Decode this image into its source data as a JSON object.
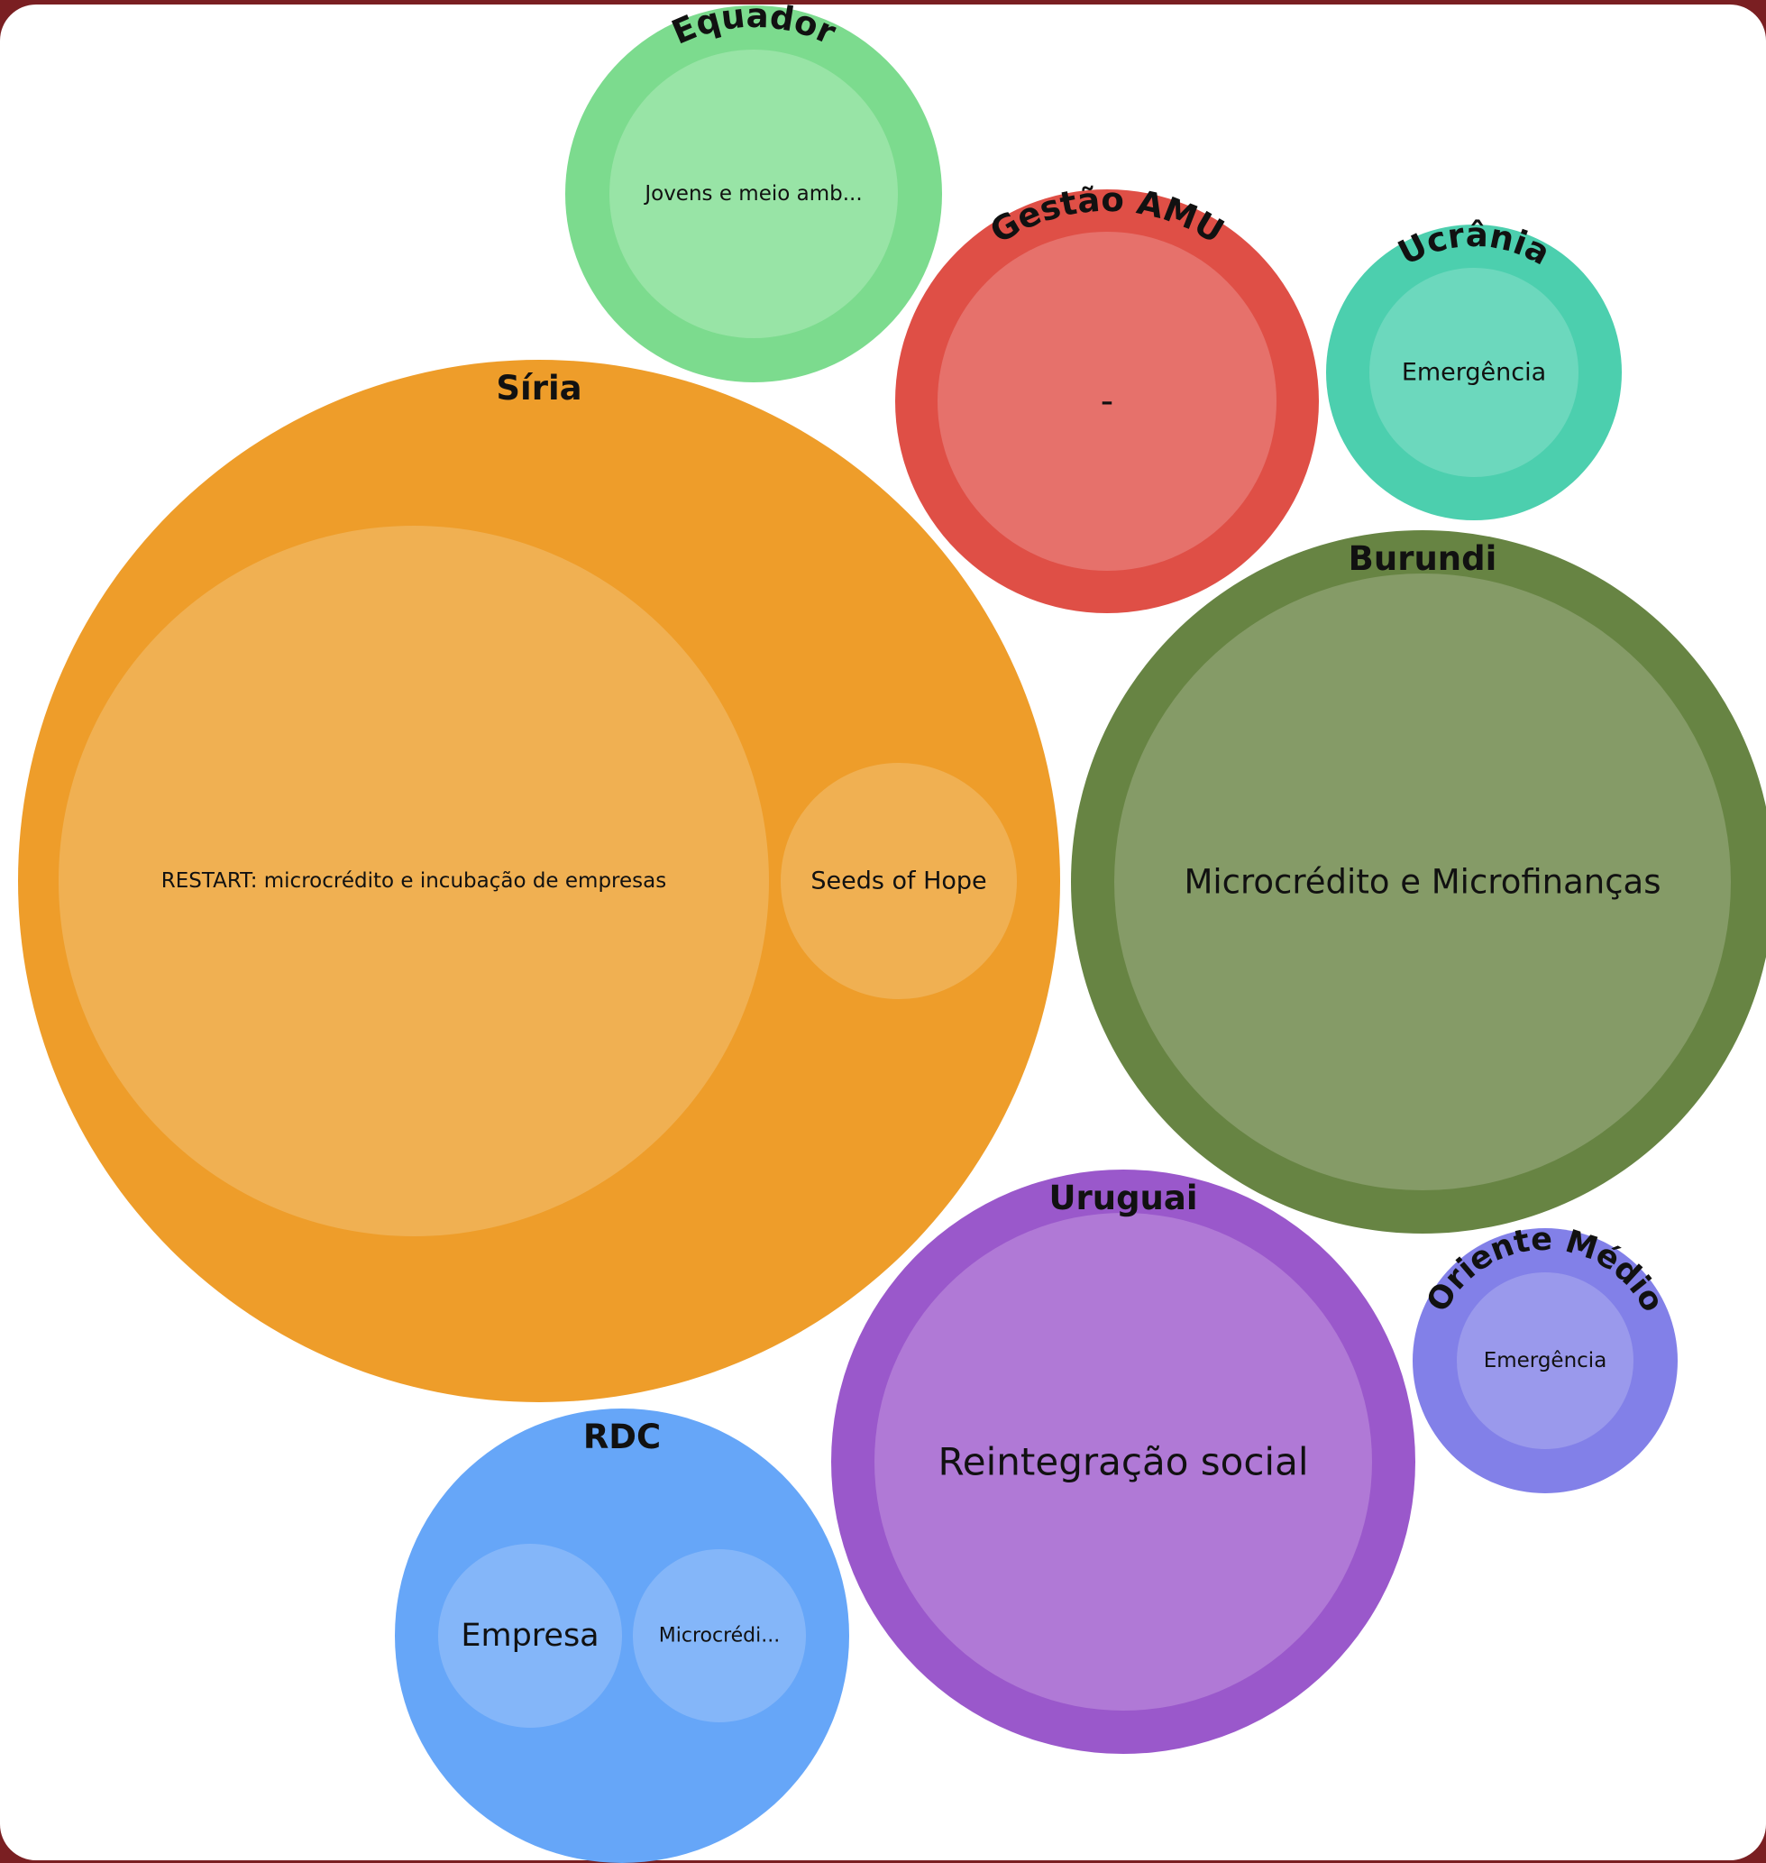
{
  "colors": {
    "background": "#7a1f22",
    "panel": "#ffffff",
    "text": "#111111"
  },
  "chart_data": {
    "type": "circle-packing",
    "groups": [
      {
        "id": "siria",
        "name": "Síria",
        "color": "#ee9d2a",
        "inner_color": "#f0b052",
        "children": [
          {
            "id": "siria-restart",
            "label": "RESTART: microcrédito e incubação de empresas"
          },
          {
            "id": "siria-seeds",
            "label": "Seeds of Hope"
          }
        ]
      },
      {
        "id": "equador",
        "name": "Equador",
        "color": "#7cdb8e",
        "inner_color": "#98e4a6",
        "children": [
          {
            "id": "equador-jovens",
            "label": "Jovens e meio amb..."
          }
        ]
      },
      {
        "id": "gestao",
        "name": "Gestão AMU",
        "color": "#df4f46",
        "inner_color": "#e6716b",
        "children": [
          {
            "id": "gestao-dash",
            "label": "-"
          }
        ]
      },
      {
        "id": "ucrania",
        "name": "Ucrânia",
        "color": "#4ccfae",
        "inner_color": "#6cd8bd",
        "children": [
          {
            "id": "ucrania-emergencia",
            "label": "Emergência"
          }
        ]
      },
      {
        "id": "burundi",
        "name": "Burundi",
        "color": "#678443",
        "inner_color": "#859b67",
        "children": [
          {
            "id": "burundi-micro",
            "label": "Microcrédito e Microfinanças"
          }
        ]
      },
      {
        "id": "uruguai",
        "name": "Uruguai",
        "color": "#9a58cb",
        "inner_color": "#b079d6",
        "children": [
          {
            "id": "uruguai-reint",
            "label": "Reintegração social"
          }
        ]
      },
      {
        "id": "oriente",
        "name": "Oriente Médio",
        "color": "#8280e8",
        "inner_color": "#9a99ec",
        "children": [
          {
            "id": "oriente-emergencia",
            "label": "Emergência"
          }
        ]
      },
      {
        "id": "rdc",
        "name": "RDC",
        "color": "#66a6f8",
        "inner_color": "#84b6f9",
        "children": [
          {
            "id": "rdc-empresa",
            "label": "Empresa"
          },
          {
            "id": "rdc-micro",
            "label": "Microcrédi..."
          }
        ]
      }
    ]
  }
}
